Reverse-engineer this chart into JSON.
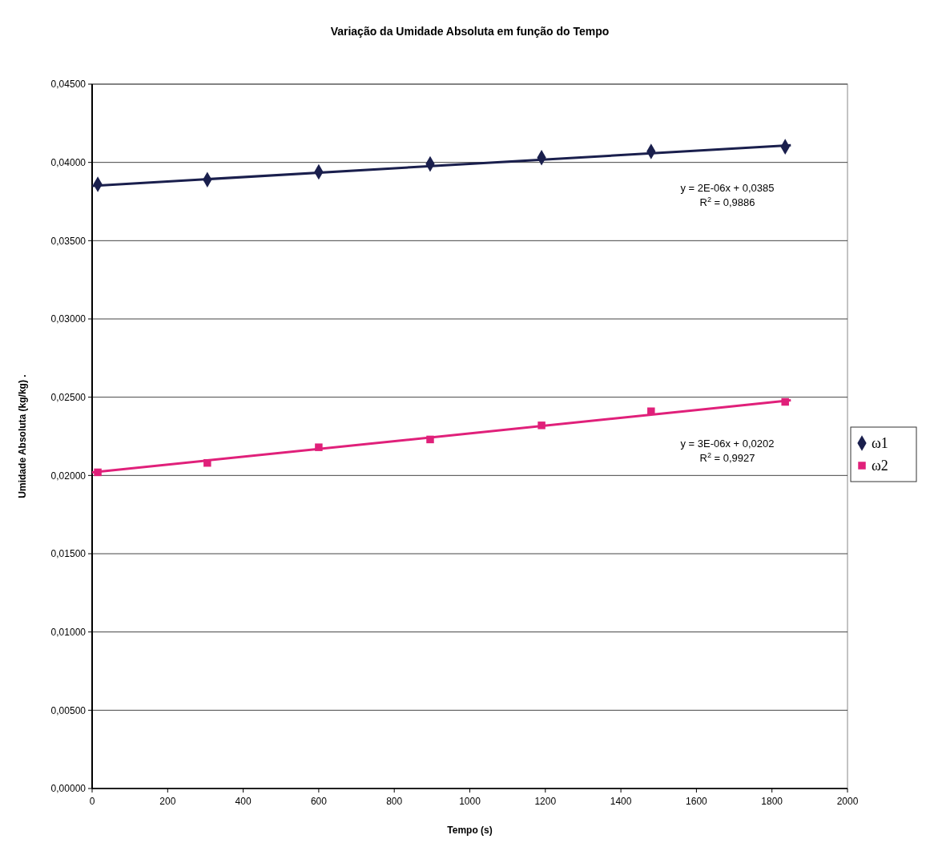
{
  "chart_data": {
    "type": "scatter",
    "title": "Variação da Umidade Absoluta em função do Tempo",
    "xlabel": "Tempo (s)",
    "ylabel": "Umidade Absoluta (kg/kg) .",
    "xlim": [
      0,
      2000
    ],
    "xticks": [
      0,
      200,
      400,
      600,
      800,
      1000,
      1200,
      1400,
      1600,
      1800,
      2000
    ],
    "ylim": [
      0,
      0.045
    ],
    "yticks": [
      {
        "value": 0,
        "label": "0,00000"
      },
      {
        "value": 0.005,
        "label": "0,00500"
      },
      {
        "value": 0.01,
        "label": "0,01000"
      },
      {
        "value": 0.015,
        "label": "0,01500"
      },
      {
        "value": 0.02,
        "label": "0,02000"
      },
      {
        "value": 0.025,
        "label": "0,02500"
      },
      {
        "value": 0.03,
        "label": "0,03000"
      },
      {
        "value": 0.035,
        "label": "0,03500"
      },
      {
        "value": 0.04,
        "label": "0,04000"
      },
      {
        "value": 0.045,
        "label": "0,04500"
      }
    ],
    "grid": "y",
    "legend": "right",
    "series": [
      {
        "name": "ω1",
        "type": "scatter",
        "marker": "diamond",
        "color": "#1a1f4d",
        "x": [
          15,
          305,
          600,
          895,
          1190,
          1480,
          1835
        ],
        "values": [
          0.0386,
          0.0389,
          0.0394,
          0.0399,
          0.0403,
          0.0407,
          0.041
        ]
      },
      {
        "name": "ω2",
        "type": "scatter",
        "marker": "square",
        "color": "#e0207a",
        "x": [
          15,
          305,
          600,
          895,
          1190,
          1480,
          1835
        ],
        "values": [
          0.0202,
          0.0208,
          0.0218,
          0.0223,
          0.0232,
          0.0241,
          0.0247
        ]
      },
      {
        "type": "line",
        "marker": "none",
        "color": "#1a1f4d",
        "x": [
          0,
          1850
        ],
        "values": [
          0.0385,
          0.0411
        ]
      },
      {
        "type": "line",
        "marker": "none",
        "color": "#e0207a",
        "x": [
          0,
          1850
        ],
        "values": [
          0.0202,
          0.0248
        ]
      }
    ],
    "annotations": [
      "y = 2E-06x + 0,0385",
      "R$^{2}$ = 0,9886",
      "y = 3E-06x + 0,0202",
      "R$^{2}$ = 0,9927"
    ]
  }
}
